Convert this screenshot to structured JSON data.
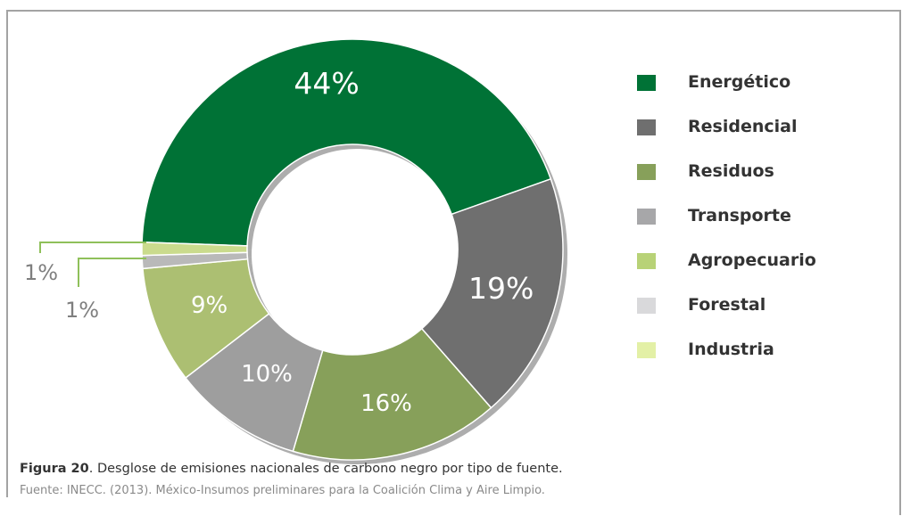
{
  "chart_data": {
    "type": "pie",
    "variant": "donut",
    "categories": [
      "Energético",
      "Residencial",
      "Residuos",
      "Transporte",
      "Agropecuario",
      "Forestal",
      "Industria"
    ],
    "values": [
      44,
      19,
      16,
      10,
      9,
      1,
      1
    ],
    "data_labels": [
      "44%",
      "19%",
      "16%",
      "10%",
      "9%",
      "1%",
      "1%"
    ],
    "colors": [
      "#007236",
      "#6f6f6f",
      "#87a05a",
      "#9e9e9e",
      "#acbf72",
      "#b9b9b9",
      "#cadb8d"
    ],
    "legend_colors": [
      "#007236",
      "#6f6f6f",
      "#87a05a",
      "#a7a7a9",
      "#b8d277",
      "#d9d9db",
      "#e3f0a6"
    ],
    "legend_position": "right"
  },
  "caption": {
    "figure_label": "Figura 20",
    "text": ". Desglose de emisiones nacionales de carbono negro por tipo de fuente."
  },
  "source": "Fuente: INECC. (2013). México-Insumos preliminares para la Coalición Clima y Aire Limpio."
}
